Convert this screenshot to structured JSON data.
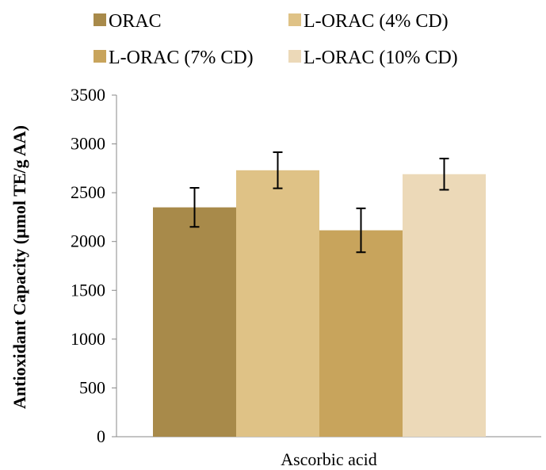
{
  "chart_data": {
    "type": "bar",
    "categories": [
      "Ascorbic acid"
    ],
    "series": [
      {
        "name": "ORAC",
        "values": [
          2350
        ],
        "error": [
          200
        ],
        "color": "#a88a4a"
      },
      {
        "name": "L-ORAC (4% CD)",
        "values": [
          2730
        ],
        "error": [
          185
        ],
        "color": "#dfc286"
      },
      {
        "name": "L-ORAC (7% CD)",
        "values": [
          2115
        ],
        "error": [
          225
        ],
        "color": "#c8a45c"
      },
      {
        "name": "L-ORAC (10% CD)",
        "values": [
          2690
        ],
        "error": [
          160
        ],
        "color": "#ecd9b8"
      }
    ],
    "title": "",
    "xlabel": "",
    "ylabel": "Antioxidant Capacity (μmol TE/g AA)",
    "ylim": [
      0,
      3500
    ],
    "yticks": [
      0,
      500,
      1000,
      1500,
      2000,
      2500,
      3000,
      3500
    ],
    "grid": false,
    "legend_position": "top"
  }
}
